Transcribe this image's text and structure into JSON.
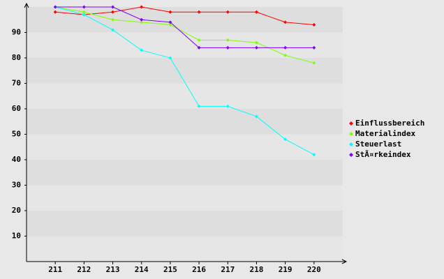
{
  "chart_data": {
    "type": "line",
    "categories": [
      "211",
      "212",
      "213",
      "214",
      "215",
      "216",
      "217",
      "218",
      "219",
      "220"
    ],
    "series": [
      {
        "name": "Einflussbereich",
        "color": "#ff0000",
        "values": [
          98,
          97,
          98,
          100,
          98,
          98,
          98,
          98,
          94,
          93
        ]
      },
      {
        "name": "Materialindex",
        "color": "#80ff00",
        "values": [
          100,
          98,
          95,
          94,
          93,
          87,
          87,
          86,
          81,
          78
        ]
      },
      {
        "name": "Steuerlast",
        "color": "#00ffff",
        "values": [
          100,
          97,
          91,
          83,
          80,
          61,
          61,
          57,
          48,
          42
        ]
      },
      {
        "name": "StÃ¤rkeindex",
        "color": "#8000ff",
        "values": [
          100,
          100,
          100,
          95,
          94,
          84,
          84,
          84,
          84,
          84
        ]
      }
    ],
    "ylim": [
      0,
      100
    ],
    "yticks": [
      10,
      20,
      30,
      40,
      50,
      60,
      70,
      80,
      90
    ],
    "legend": "right"
  }
}
